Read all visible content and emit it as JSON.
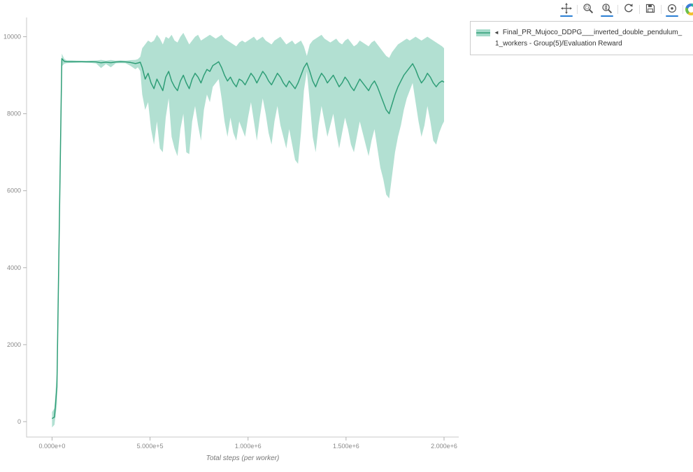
{
  "toolbar": {
    "tools": [
      {
        "name": "pan",
        "active": true
      },
      {
        "name": "box-zoom",
        "active": false
      },
      {
        "name": "wheel-zoom",
        "active": true
      },
      {
        "name": "reset",
        "active": false
      },
      {
        "name": "save",
        "active": false
      },
      {
        "name": "hover",
        "active": true
      }
    ],
    "accent_color": "#2b7fd4"
  },
  "legend": {
    "marker": "◄",
    "line1": "Final_PR_Mujoco_DDPG___inverted_double_pendulum_",
    "line2": "1_workers - Group(5)/Evaluation Reward"
  },
  "chart_data": {
    "type": "line",
    "title": "",
    "xlabel": "Total steps (per worker)",
    "ylabel": "",
    "xlim": [
      -130000,
      2075000
    ],
    "ylim": [
      -400,
      10500
    ],
    "grid": false,
    "legend_position": "top-right-outside",
    "x_ticks": [
      {
        "v": 0,
        "label": "0.000e+0"
      },
      {
        "v": 500000,
        "label": "5.000e+5"
      },
      {
        "v": 1000000,
        "label": "1.000e+6"
      },
      {
        "v": 1500000,
        "label": "1.500e+6"
      },
      {
        "v": 2000000,
        "label": "2.000e+6"
      }
    ],
    "y_ticks": [
      {
        "v": 0,
        "label": "0"
      },
      {
        "v": 2000,
        "label": "2000"
      },
      {
        "v": 4000,
        "label": "4000"
      },
      {
        "v": 6000,
        "label": "6000"
      },
      {
        "v": 8000,
        "label": "8000"
      },
      {
        "v": 10000,
        "label": "10000"
      }
    ],
    "series": [
      {
        "name": "Final_PR_Mujoco_DDPG___inverted_double_pendulum_1_workers - Group(5)/Evaluation Reward",
        "line_color": "#2f9e77",
        "band_color": "#66c2a5",
        "band_opacity": 0.5,
        "points_format": [
          "x",
          "mean",
          "lower",
          "upper"
        ],
        "points": [
          [
            0,
            80,
            -150,
            250
          ],
          [
            12500,
            120,
            -80,
            350
          ],
          [
            25000,
            900,
            450,
            1350
          ],
          [
            37500,
            5200,
            4750,
            5650
          ],
          [
            50000,
            9430,
            9230,
            9560
          ],
          [
            62500,
            9360,
            9300,
            9420
          ],
          [
            75000,
            9350,
            9315,
            9385
          ],
          [
            100000,
            9352,
            9320,
            9385
          ],
          [
            125000,
            9350,
            9325,
            9378
          ],
          [
            150000,
            9351,
            9328,
            9376
          ],
          [
            175000,
            9348,
            9322,
            9374
          ],
          [
            200000,
            9350,
            9320,
            9380
          ],
          [
            225000,
            9346,
            9305,
            9382
          ],
          [
            250000,
            9322,
            9185,
            9400
          ],
          [
            275000,
            9340,
            9292,
            9380
          ],
          [
            300000,
            9326,
            9205,
            9395
          ],
          [
            325000,
            9344,
            9310,
            9380
          ],
          [
            350000,
            9350,
            9316,
            9384
          ],
          [
            375000,
            9347,
            9312,
            9380
          ],
          [
            400000,
            9332,
            9245,
            9392
          ],
          [
            425000,
            9302,
            9155,
            9400
          ],
          [
            437500,
            9318,
            9205,
            9418
          ],
          [
            450000,
            9338,
            9105,
            9478
          ],
          [
            460000,
            9200,
            8500,
            9700
          ],
          [
            475000,
            8900,
            8100,
            9800
          ],
          [
            490000,
            9050,
            8300,
            9900
          ],
          [
            505000,
            8800,
            7600,
            9850
          ],
          [
            520000,
            8650,
            7200,
            9900
          ],
          [
            535000,
            8900,
            7800,
            10050
          ],
          [
            550000,
            8750,
            7100,
            9950
          ],
          [
            565000,
            8600,
            7000,
            9800
          ],
          [
            580000,
            8950,
            7900,
            10000
          ],
          [
            595000,
            9100,
            8400,
            9950
          ],
          [
            610000,
            8850,
            7400,
            10050
          ],
          [
            625000,
            8700,
            7100,
            9900
          ],
          [
            640000,
            8600,
            6900,
            9850
          ],
          [
            655000,
            8850,
            7600,
            10000
          ],
          [
            670000,
            9000,
            8000,
            10100
          ],
          [
            685000,
            8800,
            7000,
            9950
          ],
          [
            700000,
            8650,
            6950,
            9800
          ],
          [
            715000,
            8900,
            7800,
            9900
          ],
          [
            730000,
            9050,
            8200,
            10000
          ],
          [
            745000,
            8950,
            7700,
            10050
          ],
          [
            760000,
            8800,
            7300,
            9900
          ],
          [
            775000,
            9000,
            8100,
            9950
          ],
          [
            790000,
            9150,
            8500,
            10000
          ],
          [
            805000,
            9100,
            8300,
            10050
          ],
          [
            820000,
            9250,
            8700,
            10000
          ],
          [
            835000,
            9300,
            8800,
            9950
          ],
          [
            850000,
            9350,
            8900,
            10000
          ],
          [
            865000,
            9200,
            8400,
            10050
          ],
          [
            880000,
            9000,
            7800,
            9950
          ],
          [
            895000,
            8850,
            7400,
            9900
          ],
          [
            910000,
            8950,
            7900,
            9850
          ],
          [
            925000,
            8800,
            7500,
            9800
          ],
          [
            940000,
            8700,
            7300,
            9750
          ],
          [
            955000,
            8900,
            7800,
            9850
          ],
          [
            970000,
            8850,
            7600,
            9900
          ],
          [
            985000,
            8750,
            7400,
            9850
          ],
          [
            1000000,
            8900,
            7900,
            9900
          ],
          [
            1015000,
            9050,
            8300,
            9950
          ],
          [
            1030000,
            8950,
            7800,
            10000
          ],
          [
            1045000,
            8800,
            7300,
            9900
          ],
          [
            1060000,
            8950,
            7900,
            9950
          ],
          [
            1075000,
            9100,
            8400,
            10000
          ],
          [
            1090000,
            9000,
            8000,
            9900
          ],
          [
            1105000,
            8850,
            7500,
            9850
          ],
          [
            1120000,
            8750,
            7200,
            9800
          ],
          [
            1135000,
            8900,
            7800,
            9900
          ],
          [
            1150000,
            9050,
            8200,
            9950
          ],
          [
            1165000,
            8950,
            7700,
            10000
          ],
          [
            1180000,
            8800,
            7400,
            9900
          ],
          [
            1195000,
            8700,
            7100,
            9800
          ],
          [
            1210000,
            8850,
            7600,
            9850
          ],
          [
            1225000,
            8750,
            7200,
            9900
          ],
          [
            1240000,
            8650,
            6800,
            9800
          ],
          [
            1255000,
            8800,
            6700,
            9850
          ],
          [
            1270000,
            9000,
            7500,
            9900
          ],
          [
            1285000,
            9200,
            8600,
            9750
          ],
          [
            1300000,
            9320,
            9100,
            9500
          ],
          [
            1315000,
            9100,
            8300,
            9800
          ],
          [
            1330000,
            8850,
            7400,
            9900
          ],
          [
            1345000,
            8700,
            7000,
            9950
          ],
          [
            1360000,
            8900,
            7700,
            10000
          ],
          [
            1375000,
            9050,
            8200,
            10050
          ],
          [
            1390000,
            8950,
            7800,
            9950
          ],
          [
            1405000,
            8800,
            7400,
            9900
          ],
          [
            1420000,
            8900,
            7700,
            9850
          ],
          [
            1435000,
            9000,
            8000,
            9900
          ],
          [
            1450000,
            8850,
            7500,
            9950
          ],
          [
            1465000,
            8700,
            7100,
            9850
          ],
          [
            1480000,
            8800,
            7500,
            9800
          ],
          [
            1495000,
            8950,
            7900,
            9900
          ],
          [
            1510000,
            8850,
            7600,
            9950
          ],
          [
            1525000,
            8700,
            7200,
            9850
          ],
          [
            1540000,
            8600,
            7000,
            9750
          ],
          [
            1555000,
            8750,
            7400,
            9800
          ],
          [
            1570000,
            8900,
            7800,
            9900
          ],
          [
            1585000,
            8800,
            7500,
            9850
          ],
          [
            1600000,
            8700,
            7200,
            9800
          ],
          [
            1615000,
            8600,
            6900,
            9750
          ],
          [
            1630000,
            8750,
            7300,
            9850
          ],
          [
            1645000,
            8850,
            7600,
            9900
          ],
          [
            1660000,
            8700,
            7100,
            9800
          ],
          [
            1675000,
            8500,
            6600,
            9700
          ],
          [
            1690000,
            8300,
            6300,
            9600
          ],
          [
            1705000,
            8100,
            5900,
            9500
          ],
          [
            1720000,
            8000,
            5800,
            9450
          ],
          [
            1735000,
            8250,
            6400,
            9600
          ],
          [
            1750000,
            8500,
            7000,
            9700
          ],
          [
            1765000,
            8700,
            7400,
            9800
          ],
          [
            1780000,
            8850,
            7700,
            9850
          ],
          [
            1795000,
            9000,
            8100,
            9900
          ],
          [
            1810000,
            9100,
            8400,
            9950
          ],
          [
            1825000,
            9200,
            8600,
            9900
          ],
          [
            1840000,
            9300,
            8800,
            9950
          ],
          [
            1855000,
            9150,
            8300,
            10000
          ],
          [
            1870000,
            8950,
            7800,
            9950
          ],
          [
            1885000,
            8800,
            7400,
            9900
          ],
          [
            1900000,
            8900,
            7700,
            9950
          ],
          [
            1915000,
            9050,
            8200,
            10000
          ],
          [
            1930000,
            8950,
            7800,
            9950
          ],
          [
            1945000,
            8800,
            7300,
            9900
          ],
          [
            1960000,
            8700,
            7200,
            9850
          ],
          [
            1975000,
            8800,
            7500,
            9800
          ],
          [
            1990000,
            8850,
            7700,
            9750
          ],
          [
            2000000,
            8820,
            7800,
            9700
          ]
        ]
      }
    ]
  }
}
